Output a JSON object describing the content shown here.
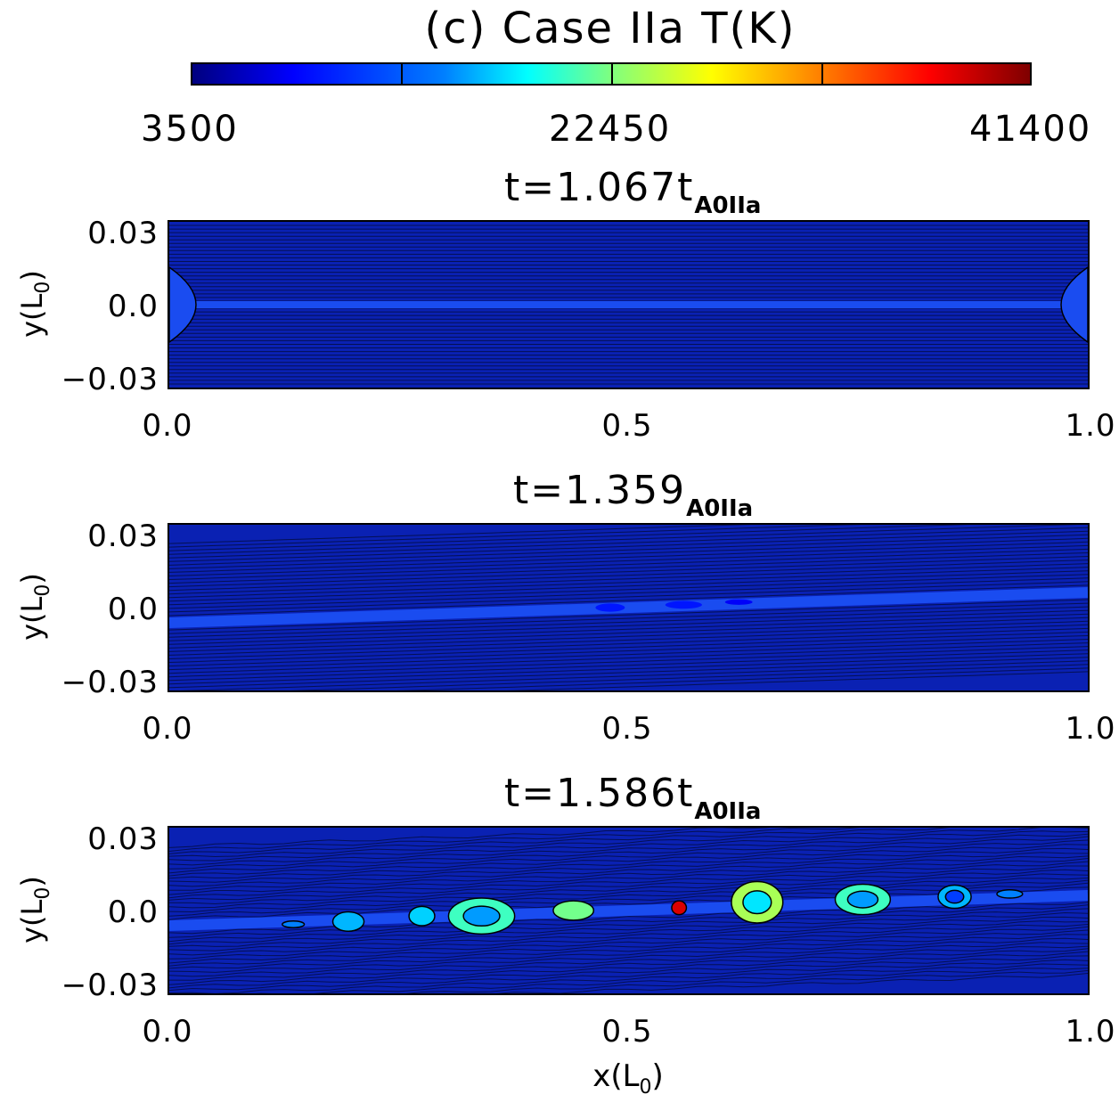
{
  "chart_data": {
    "type": "heatmap",
    "title": "(c) Case IIa T(K)",
    "colorbar": {
      "min_label": "3500",
      "mid_label": "22450",
      "max_label": "41400",
      "range": [
        3500,
        41400
      ],
      "colormap": "jet"
    },
    "xlabel_main": "x(L",
    "xlabel_sub": "0",
    "xlabel_close": ")",
    "ylabel_main": "y(L",
    "ylabel_sub": "0",
    "ylabel_close": ")",
    "xlim": [
      0.0,
      1.0
    ],
    "ylim": [
      -0.03,
      0.03
    ],
    "xticks": [
      "0.0",
      "0.5",
      "1.0"
    ],
    "yticks": [
      "0.03",
      "0.0",
      "−0.03"
    ],
    "panels": [
      {
        "title_main": "t=1.067t",
        "title_sub": "A0IIa",
        "time": 1.067,
        "current_sheet_tilt": 0.0,
        "blobs": []
      },
      {
        "title_main": "t=1.359",
        "title_sub": "A0IIa",
        "time": 1.359,
        "current_sheet_tilt": 0.011,
        "blobs": [
          {
            "x": 0.48,
            "y": 0.0,
            "rx": 0.016,
            "ry": 0.0015,
            "T": 9000
          },
          {
            "x": 0.56,
            "y": 0.001,
            "rx": 0.02,
            "ry": 0.0014,
            "T": 9000
          },
          {
            "x": 0.62,
            "y": 0.002,
            "rx": 0.015,
            "ry": 0.001,
            "T": 8000
          }
        ]
      },
      {
        "title_main": "t=1.586t",
        "title_sub": "A0IIa",
        "time": 1.586,
        "current_sheet_tilt": 0.011,
        "blobs": [
          {
            "x": 0.135,
            "y": -0.005,
            "rx": 0.012,
            "ry": 0.0012,
            "T": 13000
          },
          {
            "x": 0.195,
            "y": -0.004,
            "rx": 0.017,
            "ry": 0.0035,
            "T": 15000
          },
          {
            "x": 0.275,
            "y": -0.002,
            "rx": 0.014,
            "ry": 0.0035,
            "T": 16000
          },
          {
            "x": 0.34,
            "y": -0.002,
            "rx": 0.036,
            "ry": 0.0065,
            "T": 20000
          },
          {
            "x": 0.44,
            "y": 0.0,
            "rx": 0.022,
            "ry": 0.0035,
            "T": 22000
          },
          {
            "x": 0.555,
            "y": 0.001,
            "rx": 0.008,
            "ry": 0.0025,
            "T": 38000
          },
          {
            "x": 0.64,
            "y": 0.003,
            "rx": 0.028,
            "ry": 0.0075,
            "T": 24000
          },
          {
            "x": 0.755,
            "y": 0.004,
            "rx": 0.03,
            "ry": 0.0055,
            "T": 20000
          },
          {
            "x": 0.855,
            "y": 0.005,
            "rx": 0.018,
            "ry": 0.0042,
            "T": 15000
          },
          {
            "x": 0.915,
            "y": 0.006,
            "rx": 0.014,
            "ry": 0.0015,
            "T": 13000
          }
        ]
      }
    ]
  }
}
